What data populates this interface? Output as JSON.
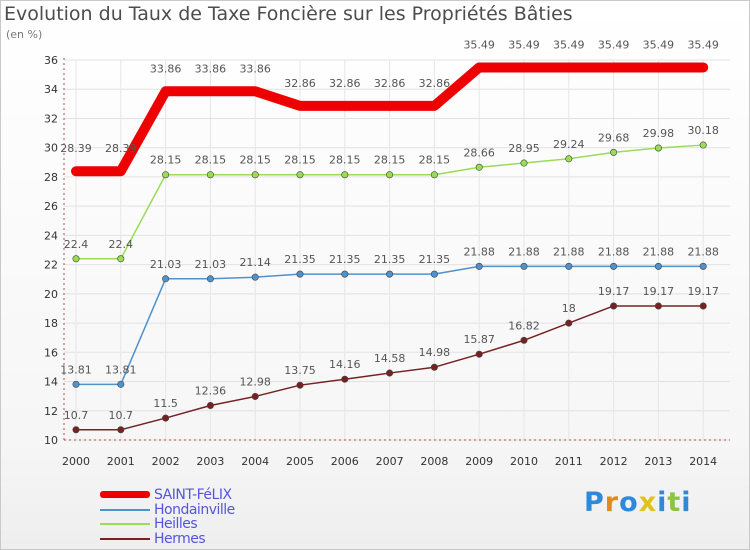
{
  "chart_data": {
    "type": "line",
    "title": "Evolution du Taux de Taxe Foncière sur les Propriétés Bâties",
    "ylabel": "(en %)",
    "xlabel": "",
    "ylim": [
      10,
      36
    ],
    "yticks": [
      10,
      12,
      14,
      16,
      18,
      20,
      22,
      24,
      26,
      28,
      30,
      32,
      34,
      36
    ],
    "grid": true,
    "x": [
      "2000",
      "2001",
      "2002",
      "2003",
      "2004",
      "2005",
      "2006",
      "2007",
      "2008",
      "2009",
      "2010",
      "2011",
      "2012",
      "2013",
      "2014"
    ],
    "series": [
      {
        "name": "SAINT-FéLIX",
        "color": "#ee0000",
        "values": [
          28.39,
          28.39,
          33.86,
          33.86,
          33.86,
          32.86,
          32.86,
          32.86,
          32.86,
          35.49,
          35.49,
          35.49,
          35.49,
          35.49,
          35.49
        ]
      },
      {
        "name": "Hondainville",
        "color": "#4f92cc",
        "values": [
          13.81,
          13.81,
          21.03,
          21.03,
          21.14,
          21.35,
          21.35,
          21.35,
          21.35,
          21.88,
          21.88,
          21.88,
          21.88,
          21.88,
          21.88
        ]
      },
      {
        "name": "Heilles",
        "color": "#99dd55",
        "values": [
          22.4,
          22.4,
          28.15,
          28.15,
          28.15,
          28.15,
          28.15,
          28.15,
          28.15,
          28.66,
          28.95,
          29.24,
          29.68,
          29.98,
          30.18
        ]
      },
      {
        "name": "Hermes",
        "color": "#772222",
        "values": [
          10.7,
          10.7,
          11.5,
          12.36,
          12.98,
          13.75,
          14.16,
          14.58,
          14.98,
          15.87,
          16.82,
          18,
          19.17,
          19.17,
          19.17
        ]
      }
    ],
    "value_labels": [
      [
        "28.39",
        "28.39",
        "33.86",
        "33.86",
        "33.86",
        "32.86",
        "32.86",
        "32.86",
        "32.86",
        "35.49",
        "35.49",
        "35.49",
        "35.49",
        "35.49",
        "35.49"
      ],
      [
        "13.81",
        "13.81",
        "21.03",
        "21.03",
        "21.14",
        "21.35",
        "21.35",
        "21.35",
        "21.35",
        "21.88",
        "21.88",
        "21.88",
        "21.88",
        "21.88",
        "21.88"
      ],
      [
        "22.4",
        "22.4",
        "28.15",
        "28.15",
        "28.15",
        "28.15",
        "28.15",
        "28.15",
        "28.15",
        "28.66",
        "28.95",
        "29.24",
        "29.68",
        "29.98",
        "30.18"
      ],
      [
        "10.7",
        "10.7",
        "11.5",
        "12.36",
        "12.98",
        "13.75",
        "14.16",
        "14.58",
        "14.98",
        "15.87",
        "16.82",
        "18",
        "19.17",
        "19.17",
        "19.17"
      ]
    ],
    "legend_position": "bottom-left"
  },
  "logo": {
    "letters": [
      "P",
      "r",
      "o",
      "x",
      "i",
      "t",
      "i"
    ],
    "colors": [
      "#2e8ad8",
      "#e38a1e",
      "#2e8ad8",
      "#e0c21a",
      "#2e8ad8",
      "#8cc63f",
      "#2e8ad8"
    ]
  }
}
